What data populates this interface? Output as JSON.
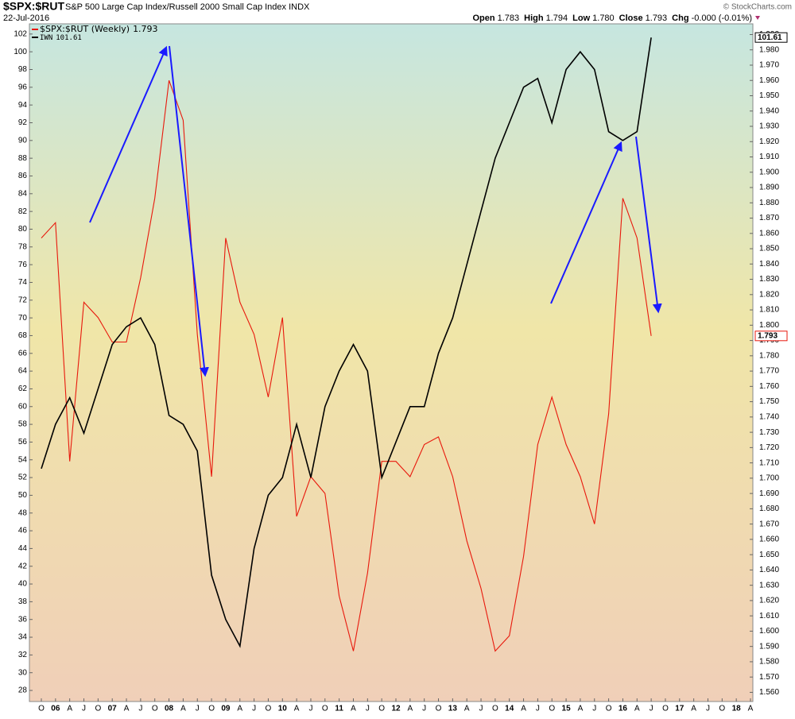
{
  "header": {
    "symbol": "$SPX:$RUT",
    "description": "S&P 500 Large Cap Index/Russell 2000 Small Cap Index  INDX",
    "date": "22-Jul-2016",
    "quote": [
      {
        "label": "Open",
        "value": "1.783"
      },
      {
        "label": "High",
        "value": "1.794"
      },
      {
        "label": "Low",
        "value": "1.780"
      },
      {
        "label": "Close",
        "value": "1.793"
      },
      {
        "label": "Chg",
        "value": "-0.000 (-0.01%)"
      }
    ],
    "credit": "© StockCharts.com"
  },
  "chart_data": {
    "type": "line",
    "categories": [
      "O",
      "06",
      "A",
      "J",
      "O",
      "07",
      "A",
      "J",
      "O",
      "08",
      "A",
      "J",
      "O",
      "09",
      "A",
      "J",
      "O",
      "10",
      "A",
      "J",
      "O",
      "11",
      "A",
      "J",
      "O",
      "12",
      "A",
      "J",
      "O",
      "13",
      "A",
      "J",
      "O",
      "14",
      "A",
      "J",
      "O",
      "15",
      "A",
      "J",
      "O",
      "16",
      "A",
      "J",
      "O",
      "17",
      "A",
      "J",
      "O",
      "18",
      "A"
    ],
    "series": [
      {
        "name": "$SPX:$RUT (Weekly)",
        "color": "#e8180c",
        "axis": "y2",
        "values": [
          1.857,
          1.867,
          1.711,
          1.815,
          1.805,
          1.789,
          1.789,
          1.831,
          1.883,
          1.96,
          1.934,
          1.794,
          1.701,
          1.857,
          1.815,
          1.794,
          1.753,
          1.805,
          1.675,
          1.701,
          1.69,
          1.623,
          1.587,
          1.638,
          1.711,
          1.711,
          1.701,
          1.722,
          1.727,
          1.701,
          1.659,
          1.628,
          1.587,
          1.597,
          1.649,
          1.722,
          1.753,
          1.722,
          1.701,
          1.67,
          1.742,
          1.883,
          1.857,
          1.793,
          null,
          null,
          null,
          null,
          null,
          null,
          null
        ]
      },
      {
        "name": "IWN",
        "color": "#000000",
        "axis": "y",
        "values": [
          53,
          58,
          61,
          57,
          62,
          67,
          69,
          70,
          67,
          59,
          58,
          55,
          41,
          36,
          33,
          44,
          50,
          52,
          58,
          52,
          60,
          64,
          67,
          64,
          52,
          56,
          60,
          60,
          66,
          70,
          76,
          82,
          88,
          92,
          96,
          97,
          92,
          98,
          100,
          98,
          91,
          90,
          91,
          101.61,
          null,
          null,
          null,
          null,
          null,
          null,
          null
        ]
      }
    ],
    "ylim": [
      26.75,
      103.15
    ],
    "yticks": [
      28,
      30,
      32,
      34,
      36,
      38,
      40,
      42,
      44,
      46,
      48,
      50,
      52,
      54,
      56,
      58,
      60,
      62,
      64,
      66,
      68,
      70,
      72,
      74,
      76,
      78,
      80,
      82,
      84,
      86,
      88,
      90,
      92,
      94,
      96,
      98,
      100,
      102
    ],
    "y2lim": [
      1.554,
      1.997
    ],
    "y2ticks": [
      {
        "value": 1.56,
        "label": "1.560"
      },
      {
        "value": 1.57,
        "label": "1.570"
      },
      {
        "value": 1.58,
        "label": "1.580"
      },
      {
        "value": 1.59,
        "label": "1.590"
      },
      {
        "value": 1.6,
        "label": "1.600"
      },
      {
        "value": 1.61,
        "label": "1.610"
      },
      {
        "value": 1.62,
        "label": "1.620"
      },
      {
        "value": 1.63,
        "label": "1.630"
      },
      {
        "value": 1.64,
        "label": "1.640"
      },
      {
        "value": 1.65,
        "label": "1.650"
      },
      {
        "value": 1.66,
        "label": "1.660"
      },
      {
        "value": 1.67,
        "label": "1.670"
      },
      {
        "value": 1.68,
        "label": "1.680"
      },
      {
        "value": 1.69,
        "label": "1.690"
      },
      {
        "value": 1.7,
        "label": "1.700"
      },
      {
        "value": 1.71,
        "label": "1.710"
      },
      {
        "value": 1.72,
        "label": "1.720"
      },
      {
        "value": 1.73,
        "label": "1.730"
      },
      {
        "value": 1.74,
        "label": "1.740"
      },
      {
        "value": 1.75,
        "label": "1.750"
      },
      {
        "value": 1.76,
        "label": "1.760"
      },
      {
        "value": 1.77,
        "label": "1.770"
      },
      {
        "value": 1.78,
        "label": "1.780"
      },
      {
        "value": 1.79,
        "label": "1.790"
      },
      {
        "value": 1.8,
        "label": "1.800"
      },
      {
        "value": 1.81,
        "label": "1.810"
      },
      {
        "value": 1.82,
        "label": "1.820"
      },
      {
        "value": 1.83,
        "label": "1.830"
      },
      {
        "value": 1.84,
        "label": "1.840"
      },
      {
        "value": 1.85,
        "label": "1.850"
      },
      {
        "value": 1.86,
        "label": "1.860"
      },
      {
        "value": 1.87,
        "label": "1.870"
      },
      {
        "value": 1.88,
        "label": "1.880"
      },
      {
        "value": 1.89,
        "label": "1.890"
      },
      {
        "value": 1.9,
        "label": "1.900"
      },
      {
        "value": 1.91,
        "label": "1.910"
      },
      {
        "value": 1.92,
        "label": "1.920"
      },
      {
        "value": 1.93,
        "label": "1.930"
      },
      {
        "value": 1.94,
        "label": "1.940"
      },
      {
        "value": 1.95,
        "label": "1.950"
      },
      {
        "value": 1.96,
        "label": "1.960"
      },
      {
        "value": 1.97,
        "label": "1.970"
      },
      {
        "value": 1.98,
        "label": "1.980"
      },
      {
        "value": 1.99,
        "label": "1.990"
      }
    ]
  }
}
